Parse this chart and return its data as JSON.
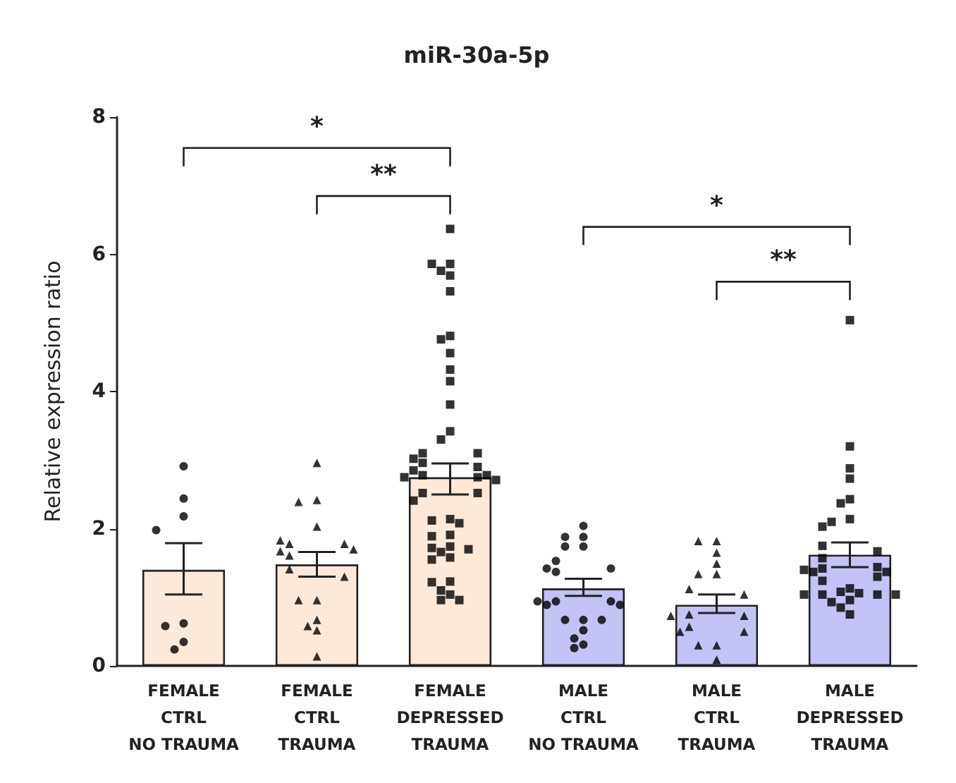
{
  "chart_data": {
    "type": "bar",
    "title": "miR-30a-5p",
    "ylabel": "Relative expression ratio",
    "categories": [
      "FEMALE\nCTRL\nNO TRAUMA",
      "FEMALE\nCTRL\nTRAUMA",
      "FEMALE\nDEPRESSED\nTRAUMA",
      "MALE\nCTRL\nNO TRAUMA",
      "MALE\nCTRL\nTRAUMA",
      "MALE\nDEPRESSED\nTRAUMA"
    ],
    "series": [
      {
        "values": [
          1.4,
          1.48,
          2.75,
          1.13,
          0.89,
          1.62
        ],
        "colors": [
          "#fde9d9",
          "#fde9d9",
          "#fde9d9",
          "#c3c3f5",
          "#c3c3f5",
          "#c3c3f5"
        ],
        "errors": [
          [
            1.04,
            1.79
          ],
          [
            1.3,
            1.66
          ],
          [
            2.5,
            2.95
          ],
          [
            1.02,
            1.27
          ],
          [
            0.77,
            1.04
          ],
          [
            1.44,
            1.8
          ]
        ]
      },
      {
        "type": "scatter",
        "marker": "circle",
        "color": "#000000",
        "x": [
          "FEMALE\nCTRL\nNO TRAUMA",
          "FEMALE\nCTRL\nNO TRAUMA",
          "FEMALE\nCTRL\nNO TRAUMA",
          "FEMALE\nCTRL\nNO TRAUMA",
          "FEMALE\nCTRL\nNO TRAUMA",
          "FEMALE\nCTRL\nNO TRAUMA",
          "FEMALE\nCTRL\nNO TRAUMA",
          "FEMALE\nCTRL\nNO TRAUMA"
        ],
        "values": [
          2.91,
          2.44,
          2.18,
          1.98,
          0.62,
          0.58,
          0.35,
          0.24
        ]
      },
      {
        "type": "scatter",
        "marker": "triangle",
        "color": "#000000",
        "x": [
          "FEMALE\nCTRL\nTRAUMA",
          "FEMALE\nCTRL\nTRAUMA",
          "FEMALE\nCTRL\nTRAUMA",
          "FEMALE\nCTRL\nTRAUMA",
          "FEMALE\nCTRL\nTRAUMA",
          "FEMALE\nCTRL\nTRAUMA",
          "FEMALE\nCTRL\nTRAUMA",
          "FEMALE\nCTRL\nTRAUMA",
          "FEMALE\nCTRL\nTRAUMA",
          "FEMALE\nCTRL\nTRAUMA",
          "FEMALE\nCTRL\nTRAUMA",
          "FEMALE\nCTRL\nTRAUMA",
          "FEMALE\nCTRL\nTRAUMA",
          "FEMALE\nCTRL\nTRAUMA",
          "FEMALE\nCTRL\nTRAUMA",
          "FEMALE\nCTRL\nTRAUMA",
          "FEMALE\nCTRL\nTRAUMA",
          "FEMALE\nCTRL\nTRAUMA"
        ],
        "values": [
          2.96,
          2.42,
          2.39,
          2.03,
          1.78,
          1.78,
          1.83,
          1.7,
          1.67,
          1.61,
          1.41,
          1.3,
          0.96,
          0.96,
          0.67,
          0.58,
          0.52,
          0.14
        ]
      },
      {
        "type": "scatter",
        "marker": "square",
        "color": "#000000",
        "x": [
          "FEMALE\nDEPRESSED\nTRAUMA",
          "FEMALE\nDEPRESSED\nTRAUMA",
          "FEMALE\nDEPRESSED\nTRAUMA",
          "FEMALE\nDEPRESSED\nTRAUMA",
          "FEMALE\nDEPRESSED\nTRAUMA",
          "FEMALE\nDEPRESSED\nTRAUMA",
          "FEMALE\nDEPRESSED\nTRAUMA",
          "FEMALE\nDEPRESSED\nTRAUMA",
          "FEMALE\nDEPRESSED\nTRAUMA",
          "FEMALE\nDEPRESSED\nTRAUMA",
          "FEMALE\nDEPRESSED\nTRAUMA",
          "FEMALE\nDEPRESSED\nTRAUMA",
          "FEMALE\nDEPRESSED\nTRAUMA",
          "FEMALE\nDEPRESSED\nTRAUMA",
          "FEMALE\nDEPRESSED\nTRAUMA",
          "FEMALE\nDEPRESSED\nTRAUMA",
          "FEMALE\nDEPRESSED\nTRAUMA",
          "FEMALE\nDEPRESSED\nTRAUMA",
          "FEMALE\nDEPRESSED\nTRAUMA",
          "FEMALE\nDEPRESSED\nTRAUMA",
          "FEMALE\nDEPRESSED\nTRAUMA",
          "FEMALE\nDEPRESSED\nTRAUMA",
          "FEMALE\nDEPRESSED\nTRAUMA",
          "FEMALE\nDEPRESSED\nTRAUMA",
          "FEMALE\nDEPRESSED\nTRAUMA",
          "FEMALE\nDEPRESSED\nTRAUMA",
          "FEMALE\nDEPRESSED\nTRAUMA",
          "FEMALE\nDEPRESSED\nTRAUMA",
          "FEMALE\nDEPRESSED\nTRAUMA",
          "FEMALE\nDEPRESSED\nTRAUMA",
          "FEMALE\nDEPRESSED\nTRAUMA",
          "FEMALE\nDEPRESSED\nTRAUMA",
          "FEMALE\nDEPRESSED\nTRAUMA",
          "FEMALE\nDEPRESSED\nTRAUMA",
          "FEMALE\nDEPRESSED\nTRAUMA",
          "FEMALE\nDEPRESSED\nTRAUMA",
          "FEMALE\nDEPRESSED\nTRAUMA",
          "FEMALE\nDEPRESSED\nTRAUMA",
          "FEMALE\nDEPRESSED\nTRAUMA",
          "FEMALE\nDEPRESSED\nTRAUMA",
          "FEMALE\nDEPRESSED\nTRAUMA",
          "FEMALE\nDEPRESSED\nTRAUMA",
          "FEMALE\nDEPRESSED\nTRAUMA",
          "FEMALE\nDEPRESSED\nTRAUMA",
          "FEMALE\nDEPRESSED\nTRAUMA"
        ],
        "values": [
          6.37,
          5.86,
          5.86,
          5.76,
          5.69,
          5.46,
          4.81,
          4.76,
          4.56,
          4.32,
          4.15,
          3.81,
          3.42,
          3.3,
          3.1,
          3.1,
          3.02,
          2.96,
          2.9,
          2.85,
          2.78,
          2.78,
          2.75,
          2.75,
          2.71,
          2.52,
          2.52,
          2.41,
          2.14,
          2.12,
          2.08,
          1.91,
          1.89,
          1.74,
          1.72,
          1.7,
          1.66,
          1.58,
          1.55,
          1.23,
          1.22,
          1.1,
          1.04,
          0.96,
          0.96
        ]
      },
      {
        "type": "scatter",
        "marker": "circle",
        "color": "#000000",
        "x": [
          "MALE\nCTRL\nNO TRAUMA",
          "MALE\nCTRL\nNO TRAUMA",
          "MALE\nCTRL\nNO TRAUMA",
          "MALE\nCTRL\nNO TRAUMA",
          "MALE\nCTRL\nNO TRAUMA",
          "MALE\nCTRL\nNO TRAUMA",
          "MALE\nCTRL\nNO TRAUMA",
          "MALE\nCTRL\nNO TRAUMA",
          "MALE\nCTRL\nNO TRAUMA",
          "MALE\nCTRL\nNO TRAUMA",
          "MALE\nCTRL\nNO TRAUMA",
          "MALE\nCTRL\nNO TRAUMA",
          "MALE\nCTRL\nNO TRAUMA",
          "MALE\nCTRL\nNO TRAUMA",
          "MALE\nCTRL\nNO TRAUMA",
          "MALE\nCTRL\nNO TRAUMA",
          "MALE\nCTRL\nNO TRAUMA",
          "MALE\nCTRL\nNO TRAUMA",
          "MALE\nCTRL\nNO TRAUMA",
          "MALE\nCTRL\nNO TRAUMA",
          "MALE\nCTRL\nNO TRAUMA"
        ],
        "values": [
          2.04,
          1.88,
          1.88,
          1.74,
          1.74,
          1.53,
          1.42,
          1.42,
          1.37,
          0.94,
          0.94,
          0.94,
          0.89,
          0.89,
          0.67,
          0.67,
          0.67,
          0.52,
          0.4,
          0.31,
          0.26
        ]
      },
      {
        "type": "scatter",
        "marker": "triangle",
        "color": "#000000",
        "x": [
          "MALE\nCTRL\nTRAUMA",
          "MALE\nCTRL\nTRAUMA",
          "MALE\nCTRL\nTRAUMA",
          "MALE\nCTRL\nTRAUMA",
          "MALE\nCTRL\nTRAUMA",
          "MALE\nCTRL\nTRAUMA",
          "MALE\nCTRL\nTRAUMA",
          "MALE\nCTRL\nTRAUMA",
          "MALE\nCTRL\nTRAUMA",
          "MALE\nCTRL\nTRAUMA",
          "MALE\nCTRL\nTRAUMA",
          "MALE\nCTRL\nTRAUMA",
          "MALE\nCTRL\nTRAUMA",
          "MALE\nCTRL\nTRAUMA",
          "MALE\nCTRL\nTRAUMA",
          "MALE\nCTRL\nTRAUMA",
          "MALE\nCTRL\nTRAUMA"
        ],
        "values": [
          1.82,
          1.82,
          1.65,
          1.49,
          1.34,
          1.34,
          1.12,
          0.75,
          0.73,
          0.73,
          0.57,
          0.5,
          0.5,
          0.3,
          0.3,
          0.09,
          1.04
        ]
      },
      {
        "type": "scatter",
        "marker": "square",
        "color": "#000000",
        "x": [
          "MALE\nDEPRESSED\nTRAUMA",
          "MALE\nDEPRESSED\nTRAUMA",
          "MALE\nDEPRESSED\nTRAUMA",
          "MALE\nDEPRESSED\nTRAUMA",
          "MALE\nDEPRESSED\nTRAUMA",
          "MALE\nDEPRESSED\nTRAUMA",
          "MALE\nDEPRESSED\nTRAUMA",
          "MALE\nDEPRESSED\nTRAUMA",
          "MALE\nDEPRESSED\nTRAUMA",
          "MALE\nDEPRESSED\nTRAUMA",
          "MALE\nDEPRESSED\nTRAUMA",
          "MALE\nDEPRESSED\nTRAUMA",
          "MALE\nDEPRESSED\nTRAUMA",
          "MALE\nDEPRESSED\nTRAUMA",
          "MALE\nDEPRESSED\nTRAUMA",
          "MALE\nDEPRESSED\nTRAUMA",
          "MALE\nDEPRESSED\nTRAUMA",
          "MALE\nDEPRESSED\nTRAUMA",
          "MALE\nDEPRESSED\nTRAUMA",
          "MALE\nDEPRESSED\nTRAUMA",
          "MALE\nDEPRESSED\nTRAUMA",
          "MALE\nDEPRESSED\nTRAUMA",
          "MALE\nDEPRESSED\nTRAUMA",
          "MALE\nDEPRESSED\nTRAUMA",
          "MALE\nDEPRESSED\nTRAUMA",
          "MALE\nDEPRESSED\nTRAUMA",
          "MALE\nDEPRESSED\nTRAUMA",
          "MALE\nDEPRESSED\nTRAUMA",
          "MALE\nDEPRESSED\nTRAUMA",
          "MALE\nDEPRESSED\nTRAUMA"
        ],
        "values": [
          5.04,
          3.2,
          2.88,
          2.73,
          2.43,
          2.37,
          2.14,
          2.1,
          2.03,
          1.75,
          1.67,
          1.57,
          1.44,
          1.42,
          1.4,
          1.37,
          1.37,
          1.3,
          1.24,
          1.13,
          1.08,
          1.06,
          1.04,
          1.04,
          1.04,
          1.04,
          0.96,
          0.93,
          0.85,
          0.75
        ]
      }
    ],
    "annotations": [
      "*",
      "**",
      "*",
      "**"
    ],
    "ylim": [
      0,
      8
    ],
    "yticks": [
      0,
      2,
      4,
      6,
      8
    ],
    "grid": false
  }
}
